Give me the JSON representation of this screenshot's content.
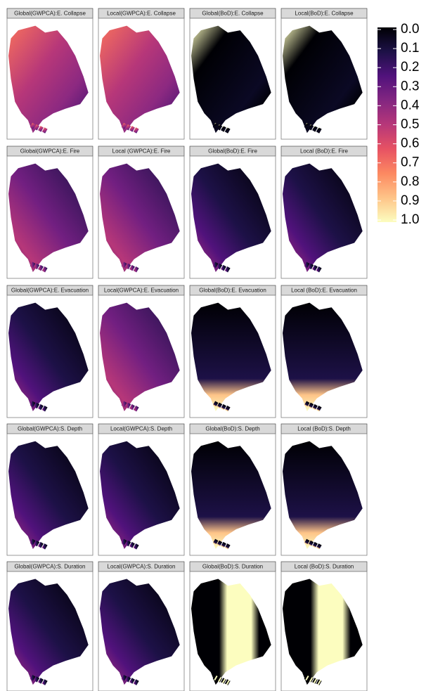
{
  "facets": [
    [
      "Global(GWPCA):E. Collapse",
      "Local(GWPCA):E. Collapse",
      "Global(BoD):E. Collapse",
      "Local(BoD):E. Collapse"
    ],
    [
      "Global(GWPCA):E. Fire",
      "Local (GWPCA):E. Fire",
      "Global(BoD):E. Fire",
      "Local (BoD):E. Fire"
    ],
    [
      "Global(GWPCA):E. Evacuation",
      "Local(GWPCA):E. Evacuation",
      "Global(BoD):E. Evacuation",
      "Local (BoD):E. Evacuation"
    ],
    [
      "Global(GWPCA):S. Depth",
      "Local(GWPCA):S. Depth",
      "Global(BoD):S. Depth",
      "Local (BoD):S. Depth"
    ],
    [
      "Global(GWPCA):S. Duration",
      "Local(GWPCA):S. Duration",
      "Global(BoD):S. Duration",
      "Local (BoD):S. Duration"
    ]
  ],
  "legend": {
    "lim": [
      0,
      1
    ],
    "ticks": [
      {
        "value": 0,
        "label": "0.0"
      },
      {
        "value": 0.1,
        "label": "0.1"
      },
      {
        "value": 0.2,
        "label": "0.2"
      },
      {
        "value": 0.3,
        "label": "0.3"
      },
      {
        "value": 0.4,
        "label": "0.4"
      },
      {
        "value": 0.5,
        "label": "0.5"
      },
      {
        "value": 0.6,
        "label": "0.6"
      },
      {
        "value": 0.7,
        "label": "0.7"
      },
      {
        "value": 0.8,
        "label": "0.8"
      },
      {
        "value": 0.9,
        "label": "0.9"
      },
      {
        "value": 1,
        "label": "1.0"
      }
    ],
    "colors": [
      "#000004",
      "#1d1147",
      "#51127c",
      "#832681",
      "#b73779",
      "#e75263",
      "#fc8961",
      "#fec488",
      "#fcfdbf"
    ]
  }
}
